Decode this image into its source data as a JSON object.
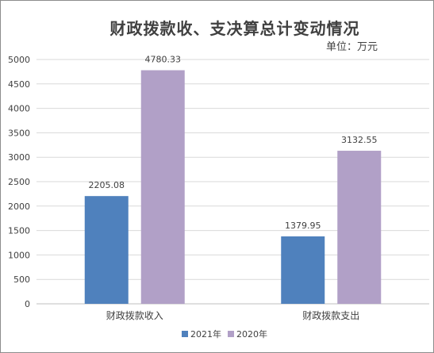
{
  "chart_data": {
    "type": "bar",
    "title": "财政拨款收、支决算总计变动情况",
    "unit_label": "单位：万元",
    "categories": [
      "财政拨款收入",
      "财政拨款支出"
    ],
    "series": [
      {
        "name": "2021年",
        "values": [
          2205.08,
          1379.95
        ],
        "color": "#4f81bd",
        "labels": [
          "2205.08",
          "1379.95"
        ]
      },
      {
        "name": "2020年",
        "values": [
          4780.33,
          3132.55
        ],
        "color": "#b1a0c7",
        "labels": [
          "4780.33",
          "3132.55"
        ]
      }
    ],
    "ylim": [
      0,
      5000
    ],
    "yticks": [
      0,
      500,
      1000,
      1500,
      2000,
      2500,
      3000,
      3500,
      4000,
      4500,
      5000
    ],
    "grid": true,
    "legend_position": "bottom"
  }
}
